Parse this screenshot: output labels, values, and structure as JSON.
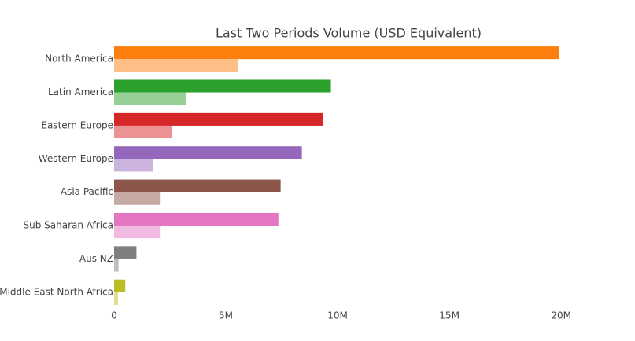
{
  "chart_data": {
    "type": "bar",
    "orientation": "horizontal",
    "title": "Last Two Periods Volume (USD Equivalent)",
    "categories": [
      "North America",
      "Latin America",
      "Eastern Europe",
      "Western Europe",
      "Asia Pacific",
      "Sub Saharan Africa",
      "Aus NZ",
      "Middle East North Africa"
    ],
    "series": [
      {
        "colors": [
          "#ff7f0e",
          "#2ca02c",
          "#d62728",
          "#9467bd",
          "#8c564b",
          "#e377c2",
          "#7f7f7f",
          "#bcbd22"
        ],
        "values": [
          19900000,
          9700000,
          9350000,
          8400000,
          7450000,
          7350000,
          1000000,
          500000
        ]
      },
      {
        "colors": [
          "#ffbf87",
          "#96d096",
          "#eb9394",
          "#cab3de",
          "#c6aba5",
          "#f1bbe1",
          "#bfbfbf",
          "#dedf91"
        ],
        "values": [
          5550000,
          3200000,
          2600000,
          1750000,
          2050000,
          2050000,
          200000,
          180000
        ]
      }
    ],
    "xlim": [
      0,
      20100000
    ],
    "xticks": [
      0,
      {
        "value": 5000000,
        "label": "5M"
      },
      {
        "value": 10000000,
        "label": "10M"
      },
      {
        "value": 15000000,
        "label": "15M"
      },
      {
        "value": 20000000,
        "label": "20M"
      }
    ],
    "grid": false
  }
}
